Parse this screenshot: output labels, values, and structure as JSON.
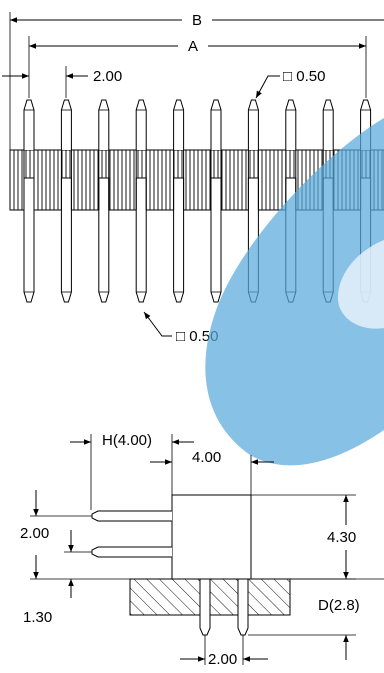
{
  "drawing": {
    "top_view": {
      "dim_b": "B",
      "dim_a": "A",
      "pitch": "2.00",
      "pin_size_top": "□ 0.50",
      "pin_size_bottom": "□ 0.50",
      "pin_count_visible": 10
    },
    "side_view": {
      "dim_h": "H(4.00)",
      "body_width": "4.00",
      "row_pitch": "2.00",
      "body_height": "4.30",
      "standoff": "1.30",
      "dim_d": "D(2.8)",
      "pcb_pitch": "2.00"
    },
    "overlay_color": "#5aa9dc"
  }
}
